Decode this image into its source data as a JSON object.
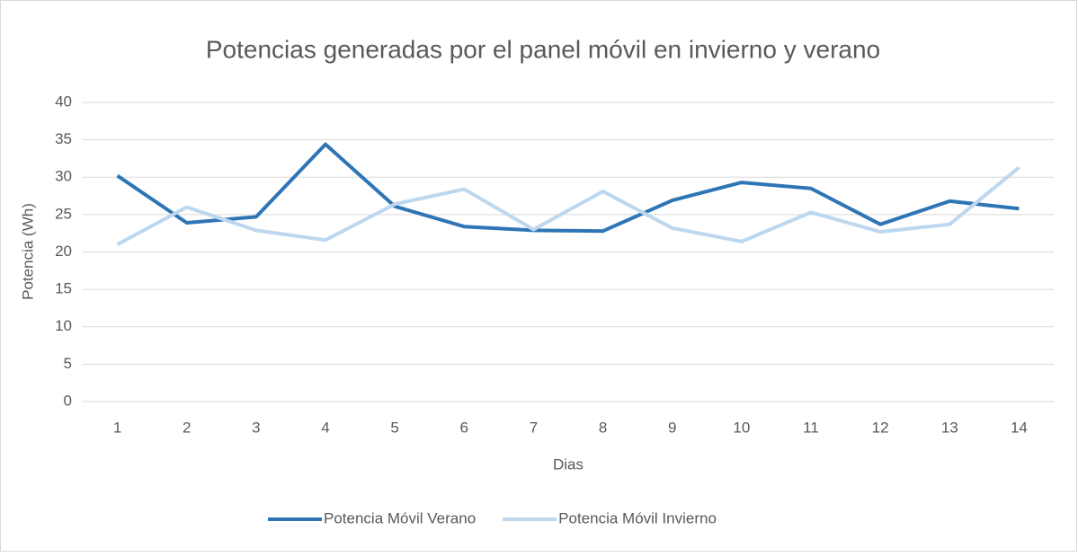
{
  "chart_data": {
    "type": "line",
    "title": "Potencias generadas por el panel móvil en invierno y verano",
    "x_label": "Dias",
    "y_label": "Potencia (Wh)",
    "categories": [
      "1",
      "2",
      "3",
      "4",
      "5",
      "6",
      "7",
      "8",
      "9",
      "10",
      "11",
      "12",
      "13",
      "14"
    ],
    "series": [
      {
        "name": "Potencia Móvil Verano",
        "color": "#2e75b6",
        "values": [
          30.2,
          23.9,
          24.7,
          34.4,
          26.1,
          23.4,
          22.9,
          22.8,
          26.9,
          29.3,
          28.5,
          23.7,
          26.8,
          25.8
        ]
      },
      {
        "name": "Potencia Móvil Invierno",
        "color": "#bdd7ee",
        "values": [
          21.0,
          26.0,
          22.9,
          21.6,
          26.4,
          28.4,
          23.0,
          28.1,
          23.2,
          21.4,
          25.3,
          22.7,
          23.7,
          31.3
        ]
      }
    ],
    "ylim": [
      0,
      40
    ],
    "yticks": [
      0,
      5,
      10,
      15,
      20,
      25,
      30,
      35,
      40
    ],
    "grid": true,
    "legend": "bottom"
  }
}
